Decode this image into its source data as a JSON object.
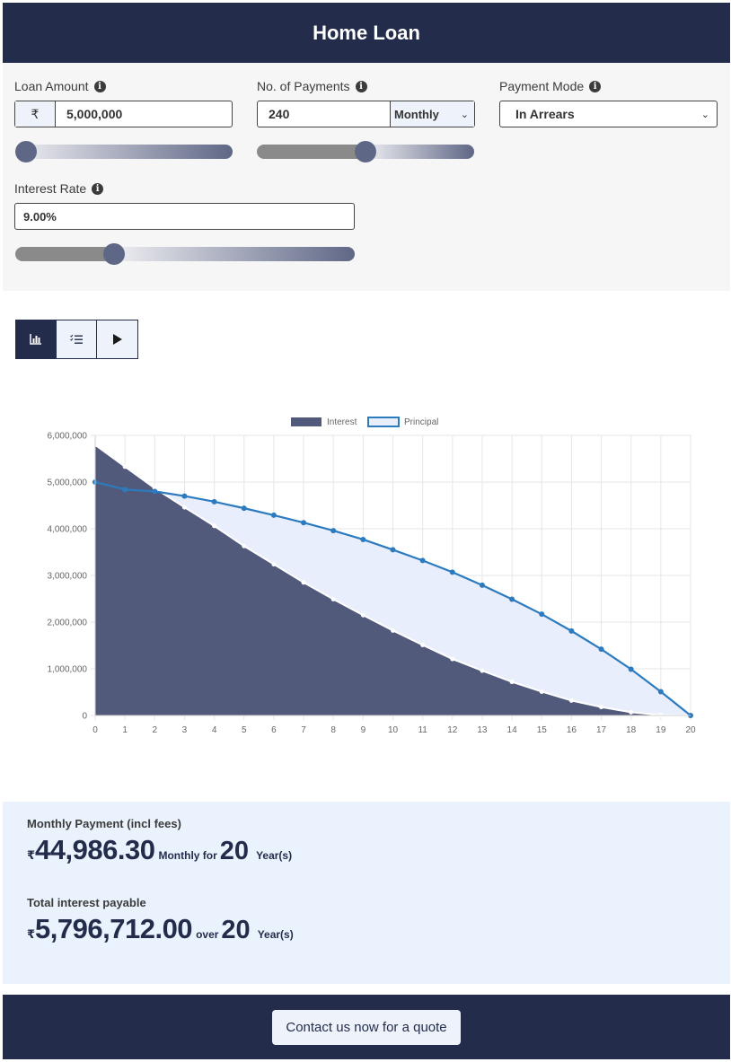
{
  "app": {
    "title": "Home Loan"
  },
  "loan_amount": {
    "label": "Loan Amount",
    "currency": "₹",
    "value": "5,000,000",
    "slider_fraction": 0.0
  },
  "payments": {
    "label": "No. of Payments",
    "value": "240",
    "frequency": "Monthly",
    "slider_fraction": 0.5
  },
  "payment_mode": {
    "label": "Payment Mode",
    "value": "In Arrears"
  },
  "interest_rate": {
    "label": "Interest Rate",
    "value": "9.00%",
    "slider_fraction": 0.29
  },
  "toolbar": {
    "active": "chart",
    "buttons": [
      "chart-icon",
      "list-icon",
      "play-icon"
    ]
  },
  "chart_data": {
    "type": "area",
    "x": [
      0,
      1,
      2,
      3,
      4,
      5,
      6,
      7,
      8,
      9,
      10,
      11,
      12,
      13,
      14,
      15,
      16,
      17,
      18,
      19,
      20
    ],
    "ylim": [
      0,
      6000000
    ],
    "yticks": [
      "0",
      "1,000,000",
      "2,000,000",
      "3,000,000",
      "4,000,000",
      "5,000,000",
      "6,000,000"
    ],
    "legend_position": "top",
    "series": [
      {
        "name": "Interest",
        "color": "#525a7b",
        "values": [
          5796712,
          5330000,
          4870000,
          4460000,
          4060000,
          3630000,
          3240000,
          2850000,
          2490000,
          2150000,
          1820000,
          1510000,
          1210000,
          960000,
          720000,
          510000,
          320000,
          180000,
          70000,
          10000,
          0
        ]
      },
      {
        "name": "Principal",
        "color": "#2c7bbf",
        "fill": "#e9eefc",
        "values": [
          5000000,
          4840000,
          4800000,
          4700000,
          4580000,
          4440000,
          4290000,
          4130000,
          3960000,
          3770000,
          3550000,
          3320000,
          3070000,
          2790000,
          2490000,
          2170000,
          1810000,
          1420000,
          990000,
          510000,
          0
        ]
      }
    ]
  },
  "results": {
    "monthly": {
      "label": "Monthly Payment (incl fees)",
      "currency": "₹",
      "amount": "44,986.30",
      "connector": "Monthly for",
      "years": "20",
      "unit": "Year(s)"
    },
    "interest": {
      "label": "Total interest payable",
      "currency": "₹",
      "amount": "5,796,712.00",
      "connector": "over",
      "years": "20",
      "unit": "Year(s)"
    }
  },
  "footer": {
    "cta": "Contact us now for a quote"
  }
}
